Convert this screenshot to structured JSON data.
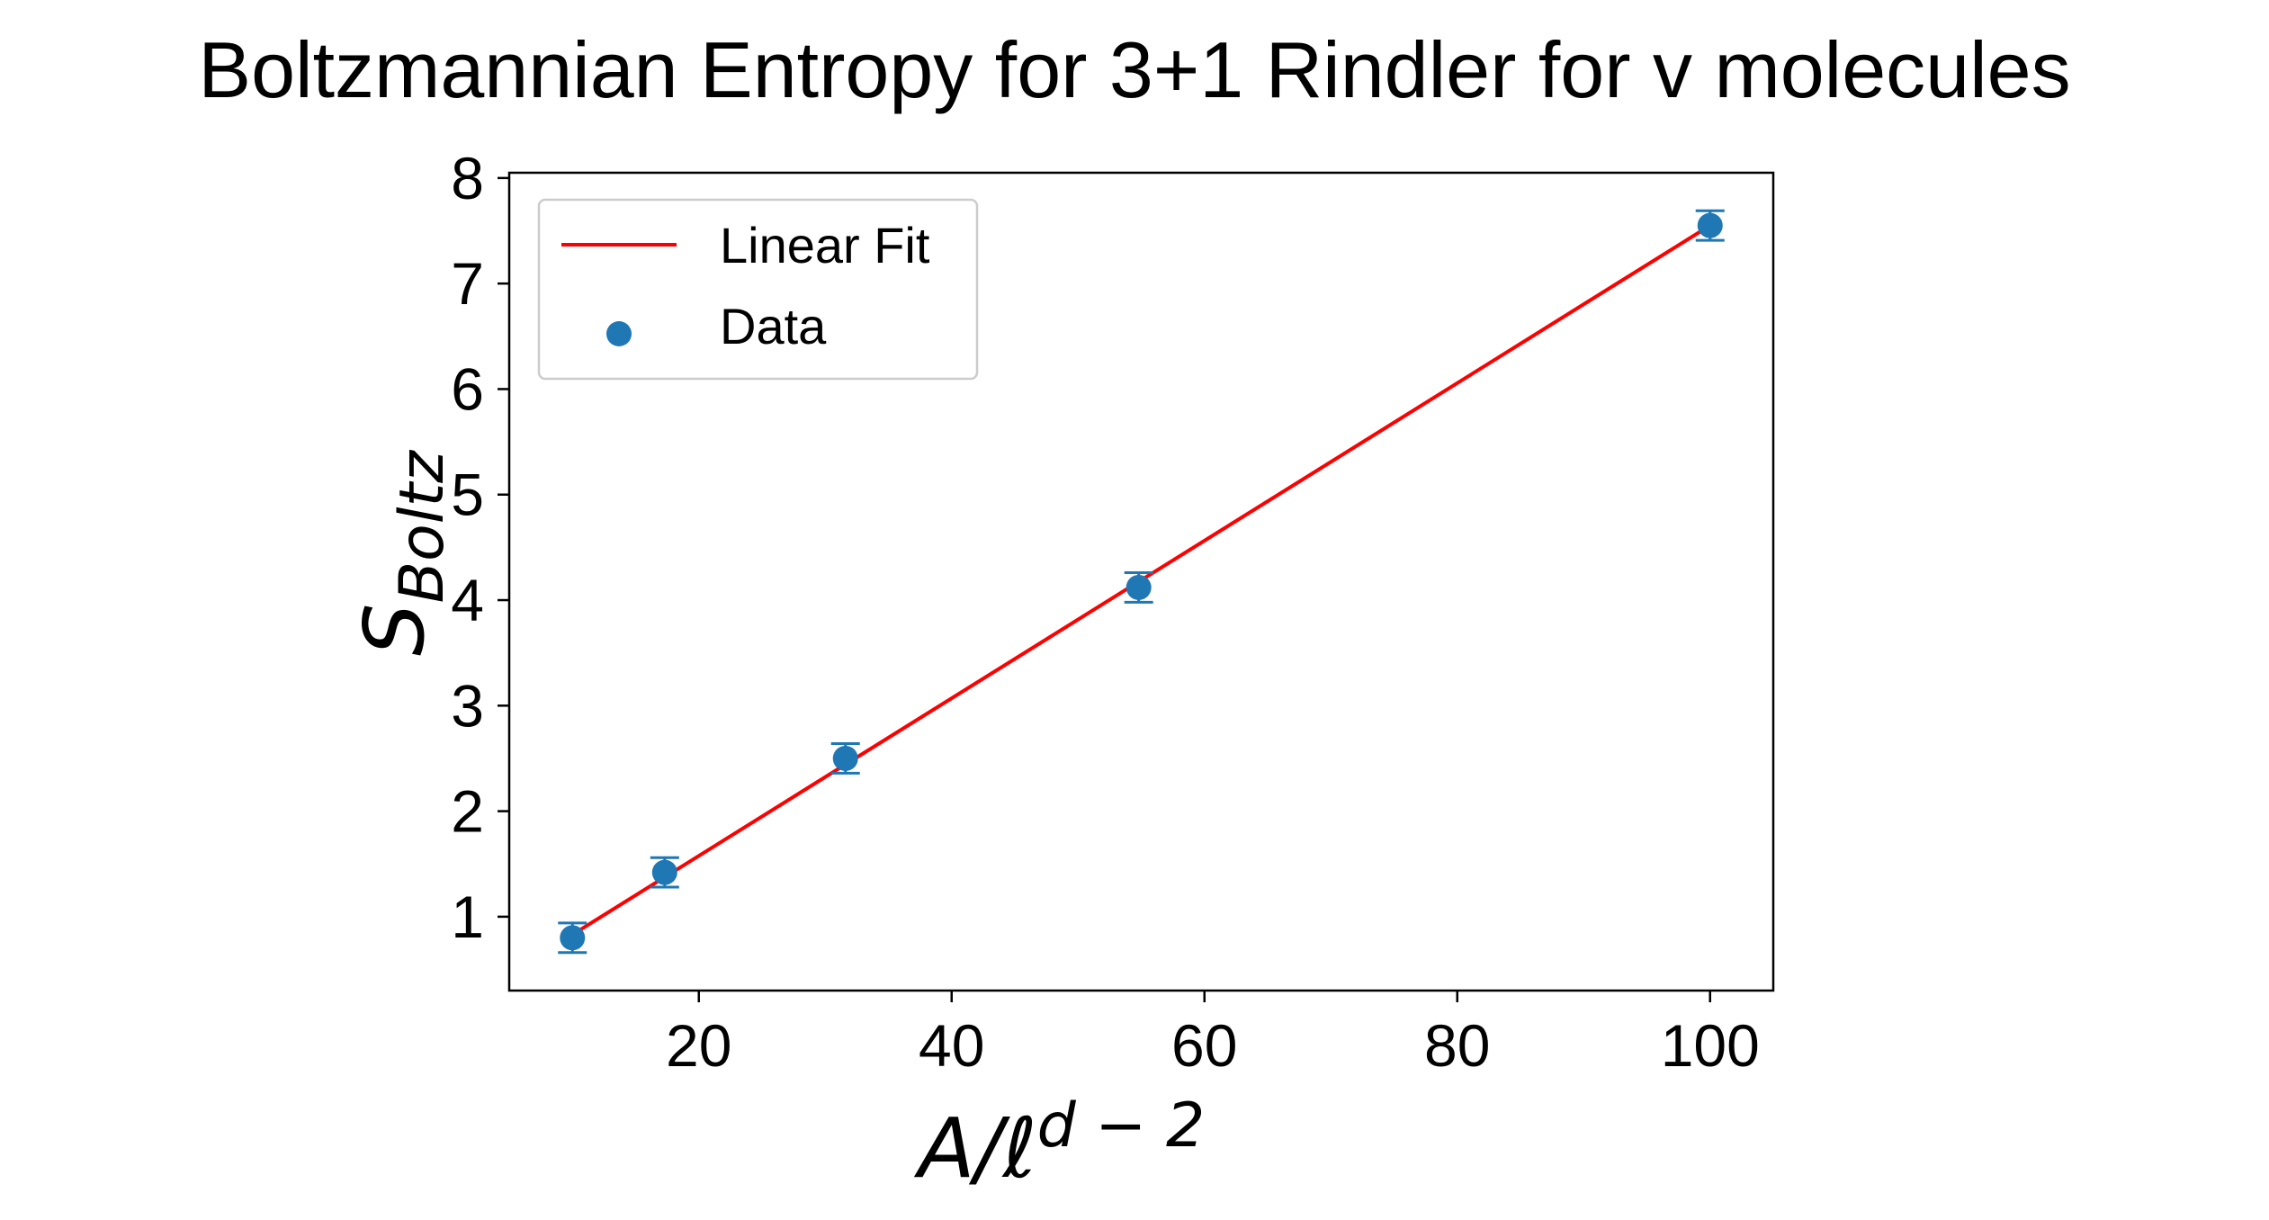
{
  "chart_data": {
    "type": "scatter",
    "title": "Boltzmannian Entropy for 3+1 Rindler for v molecules",
    "xlabel": {
      "base": "A/ℓ",
      "sup": "d − 2"
    },
    "ylabel": {
      "base": "S",
      "sub": "Boltz"
    },
    "xlim": [
      5,
      105
    ],
    "ylim": [
      0.3,
      8.05
    ],
    "xticks": [
      20,
      40,
      60,
      80,
      100
    ],
    "yticks": [
      1,
      2,
      3,
      4,
      5,
      6,
      7,
      8
    ],
    "grid": false,
    "legend_position": "upper-left",
    "series": [
      {
        "name": "Data",
        "kind": "scatter-errorbar",
        "color": "#1f77b4",
        "x": [
          10,
          17.3,
          31.6,
          54.8,
          100
        ],
        "y": [
          0.8,
          1.42,
          2.5,
          4.12,
          7.55
        ],
        "yerr": [
          0.14,
          0.14,
          0.14,
          0.14,
          0.14
        ]
      },
      {
        "name": "Linear Fit",
        "kind": "line",
        "color": "#ff0000",
        "x": [
          10,
          100
        ],
        "y": [
          0.83,
          7.55
        ]
      }
    ]
  }
}
